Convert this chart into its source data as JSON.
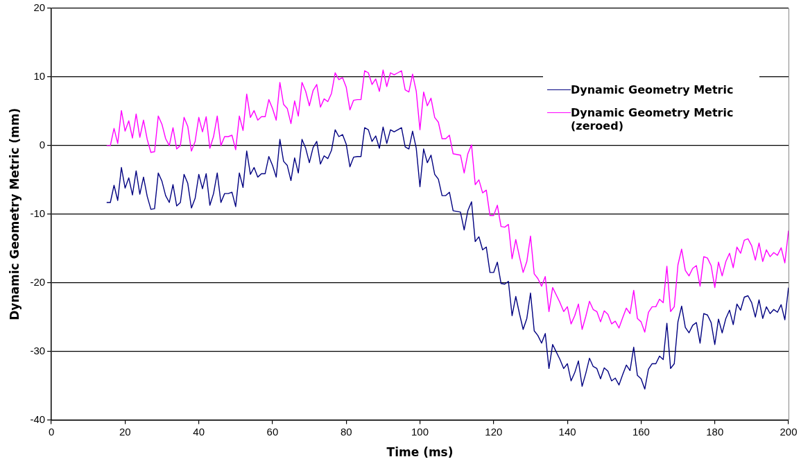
{
  "chart_data": {
    "type": "line",
    "xlabel": "Time (ms)",
    "ylabel": "Dynamic Geometry Metric (mm)",
    "x": [
      15,
      16,
      17,
      18,
      19,
      20,
      21,
      22,
      23,
      24,
      25,
      26,
      27,
      28,
      29,
      30,
      31,
      32,
      33,
      34,
      35,
      36,
      37,
      38,
      39,
      40,
      41,
      42,
      43,
      44,
      45,
      46,
      47,
      48,
      49,
      50,
      51,
      52,
      53,
      54,
      55,
      56,
      57,
      58,
      59,
      60,
      61,
      62,
      63,
      64,
      65,
      66,
      67,
      68,
      69,
      70,
      71,
      72,
      73,
      74,
      75,
      76,
      77,
      78,
      79,
      80,
      81,
      82,
      83,
      84,
      85,
      86,
      87,
      88,
      89,
      90,
      91,
      92,
      93,
      94,
      95,
      96,
      97,
      98,
      99,
      100,
      101,
      102,
      103,
      104,
      105,
      106,
      107,
      108,
      109,
      110,
      111,
      112,
      113,
      114,
      115,
      116,
      117,
      118,
      119,
      120,
      121,
      122,
      123,
      124,
      125,
      126,
      127,
      128,
      129,
      130,
      131,
      132,
      133,
      134,
      135,
      136,
      137,
      138,
      139,
      140,
      141,
      142,
      143,
      144,
      145,
      146,
      147,
      148,
      149,
      150,
      151,
      152,
      153,
      154,
      155,
      156,
      157,
      158,
      159,
      160,
      161,
      162,
      163,
      164,
      165,
      166,
      167,
      168,
      169,
      170,
      171,
      172,
      173,
      174,
      175,
      176,
      177,
      178,
      179,
      180,
      181,
      182,
      183,
      184,
      185,
      186,
      187,
      188,
      189,
      190,
      191,
      192,
      193,
      194,
      195,
      196,
      197,
      198,
      199,
      200
    ],
    "series": [
      {
        "name": "Dynamic Geometry Metric",
        "color": "#000080",
        "values": [
          -8.3,
          -8.3,
          -5.8,
          -8.0,
          -3.2,
          -6.2,
          -4.7,
          -7.2,
          -3.7,
          -7.1,
          -4.6,
          -7.4,
          -9.3,
          -9.2,
          -4.0,
          -5.2,
          -7.3,
          -8.3,
          -5.7,
          -8.8,
          -8.3,
          -4.2,
          -5.5,
          -9.1,
          -7.7,
          -4.2,
          -6.3,
          -4.1,
          -8.7,
          -7.0,
          -4.0,
          -8.3,
          -7.0,
          -7.0,
          -6.8,
          -8.9,
          -4.0,
          -6.1,
          -0.8,
          -4.2,
          -3.2,
          -4.6,
          -4.1,
          -4.1,
          -1.6,
          -2.9,
          -4.6,
          0.9,
          -2.3,
          -2.9,
          -5.1,
          -1.8,
          -4.0,
          0.9,
          -0.4,
          -2.5,
          -0.3,
          0.6,
          -2.7,
          -1.5,
          -1.9,
          -0.7,
          2.3,
          1.3,
          1.6,
          0.2,
          -3.1,
          -1.7,
          -1.6,
          -1.6,
          2.6,
          2.3,
          0.6,
          1.4,
          -0.4,
          2.7,
          0.3,
          2.3,
          2.0,
          2.3,
          2.6,
          -0.2,
          -0.5,
          2.1,
          -0.4,
          -6.0,
          -0.5,
          -2.5,
          -1.4,
          -4.2,
          -4.9,
          -7.3,
          -7.3,
          -6.8,
          -9.5,
          -9.6,
          -9.7,
          -12.3,
          -9.5,
          -8.2,
          -14.0,
          -13.3,
          -15.2,
          -14.8,
          -18.5,
          -18.5,
          -17.0,
          -20.1,
          -20.2,
          -19.8,
          -24.8,
          -22.0,
          -24.5,
          -26.8,
          -25.2,
          -21.5,
          -27.0,
          -27.7,
          -28.8,
          -27.4,
          -32.5,
          -29.0,
          -30.1,
          -31.2,
          -32.5,
          -31.8,
          -34.3,
          -33.1,
          -31.4,
          -35.1,
          -33.2,
          -31.0,
          -32.2,
          -32.5,
          -34.0,
          -32.4,
          -32.9,
          -34.3,
          -33.9,
          -34.9,
          -33.4,
          -32.0,
          -32.8,
          -29.4,
          -33.5,
          -34.0,
          -35.5,
          -32.6,
          -31.8,
          -31.8,
          -30.7,
          -31.2,
          -25.9,
          -32.5,
          -31.8,
          -25.7,
          -23.4,
          -26.5,
          -27.3,
          -26.2,
          -25.8,
          -28.8,
          -24.5,
          -24.7,
          -25.8,
          -29.0,
          -25.3,
          -27.3,
          -25.2,
          -24.0,
          -26.1,
          -23.1,
          -24.0,
          -22.1,
          -21.9,
          -22.9,
          -25.0,
          -22.5,
          -25.2,
          -23.5,
          -24.5,
          -23.9,
          -24.3,
          -23.2,
          -25.4,
          -20.7
        ]
      },
      {
        "name": "Dynamic Geometry Metric (zeroed)",
        "color": "#ff00ff",
        "values": [
          0.0,
          0.0,
          2.5,
          0.3,
          5.1,
          2.1,
          3.6,
          1.1,
          4.6,
          1.2,
          3.7,
          0.9,
          -1.0,
          -0.9,
          4.3,
          3.1,
          1.0,
          0.0,
          2.6,
          -0.5,
          0.0,
          4.1,
          2.8,
          -0.8,
          0.6,
          4.1,
          2.0,
          4.2,
          -0.4,
          1.3,
          4.3,
          0.0,
          1.3,
          1.3,
          1.5,
          -0.6,
          4.3,
          2.2,
          7.5,
          4.1,
          5.1,
          3.7,
          4.2,
          4.2,
          6.7,
          5.4,
          3.7,
          9.2,
          6.0,
          5.4,
          3.2,
          6.5,
          4.3,
          9.2,
          7.9,
          5.8,
          8.0,
          8.9,
          5.6,
          6.8,
          6.4,
          7.6,
          10.6,
          9.6,
          9.9,
          8.5,
          5.2,
          6.6,
          6.7,
          6.7,
          10.9,
          10.6,
          8.9,
          9.7,
          7.9,
          11.0,
          8.6,
          10.6,
          10.3,
          10.6,
          10.9,
          8.1,
          7.8,
          10.4,
          7.9,
          2.3,
          7.8,
          5.8,
          6.9,
          4.1,
          3.4,
          1.0,
          1.0,
          1.5,
          -1.2,
          -1.3,
          -1.4,
          -4.0,
          -1.2,
          0.1,
          -5.7,
          -5.0,
          -6.9,
          -6.5,
          -10.2,
          -10.2,
          -8.7,
          -11.8,
          -11.9,
          -11.5,
          -16.5,
          -13.7,
          -16.2,
          -18.5,
          -16.9,
          -13.2,
          -18.7,
          -19.4,
          -20.5,
          -19.1,
          -24.2,
          -20.7,
          -21.8,
          -22.9,
          -24.2,
          -23.5,
          -26.0,
          -24.8,
          -23.1,
          -26.8,
          -24.9,
          -22.7,
          -23.9,
          -24.2,
          -25.7,
          -24.1,
          -24.6,
          -26.0,
          -25.6,
          -26.6,
          -25.1,
          -23.7,
          -24.5,
          -21.1,
          -25.2,
          -25.7,
          -27.2,
          -24.3,
          -23.5,
          -23.5,
          -22.4,
          -22.9,
          -17.6,
          -24.2,
          -23.5,
          -17.4,
          -15.1,
          -18.2,
          -19.0,
          -17.9,
          -17.5,
          -20.5,
          -16.2,
          -16.4,
          -17.5,
          -20.7,
          -17.0,
          -19.0,
          -16.9,
          -15.7,
          -17.8,
          -14.8,
          -15.7,
          -13.8,
          -13.6,
          -14.6,
          -16.7,
          -14.2,
          -16.9,
          -15.2,
          -16.2,
          -15.6,
          -16.0,
          -14.9,
          -17.1,
          -12.4
        ]
      }
    ],
    "xlim": [
      0,
      200
    ],
    "xticks": [
      0,
      20,
      40,
      60,
      80,
      100,
      120,
      140,
      160,
      180,
      200
    ],
    "ylim": [
      -40,
      20
    ],
    "yticks": [
      -40,
      -30,
      -20,
      -10,
      0,
      10,
      20
    ],
    "grid": "y",
    "legend": "top right",
    "marker": "none",
    "line_style": "solid"
  }
}
